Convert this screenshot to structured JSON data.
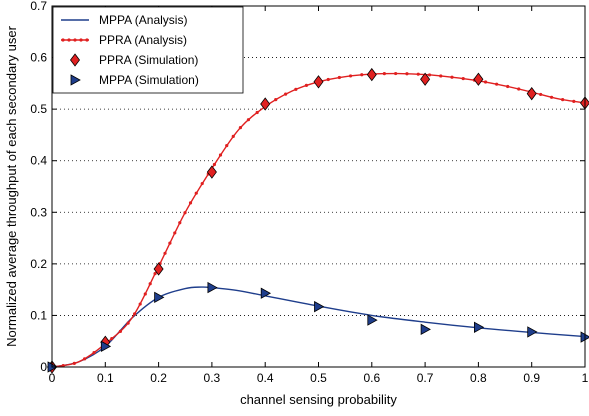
{
  "chart_data": {
    "type": "line",
    "xlabel": "channel sensing probability",
    "ylabel": "Normalized average throughput of each secondary user",
    "xlim": [
      0,
      1
    ],
    "ylim": [
      0,
      0.7
    ],
    "xticks": [
      0,
      0.1,
      0.2,
      0.3,
      0.4,
      0.5,
      0.6,
      0.7,
      0.8,
      0.9,
      1
    ],
    "yticks": [
      0,
      0.1,
      0.2,
      0.3,
      0.4,
      0.5,
      0.6,
      0.7
    ],
    "xtick_labels": [
      "0",
      "0.1",
      "0.2",
      "0.3",
      "0.4",
      "0.5",
      "0.6",
      "0.7",
      "0.8",
      "0.9",
      "1"
    ],
    "ytick_labels": [
      "0",
      "0.1",
      "0.2",
      "0.3",
      "0.4",
      "0.5",
      "0.6",
      "0.7"
    ],
    "grid": "horizontal dotted",
    "legend_position": "top-left",
    "series": [
      {
        "name": "MPPA (Analysis)",
        "style": "line",
        "color": "#1f3e8c",
        "x": [
          0,
          0.05,
          0.1,
          0.15,
          0.2,
          0.25,
          0.28,
          0.3,
          0.35,
          0.4,
          0.5,
          0.6,
          0.7,
          0.8,
          0.9,
          1.0
        ],
        "y": [
          0,
          0.01,
          0.04,
          0.095,
          0.135,
          0.152,
          0.155,
          0.154,
          0.148,
          0.138,
          0.118,
          0.1,
          0.087,
          0.076,
          0.067,
          0.059
        ]
      },
      {
        "name": "PPRA (Analysis)",
        "style": "line-dots",
        "color": "#e02020",
        "x": [
          0,
          0.05,
          0.1,
          0.15,
          0.2,
          0.25,
          0.3,
          0.35,
          0.4,
          0.45,
          0.5,
          0.55,
          0.6,
          0.65,
          0.7,
          0.75,
          0.8,
          0.85,
          0.9,
          0.95,
          1.0
        ],
        "y": [
          0,
          0.01,
          0.045,
          0.095,
          0.195,
          0.3,
          0.385,
          0.46,
          0.505,
          0.535,
          0.553,
          0.563,
          0.568,
          0.569,
          0.567,
          0.562,
          0.555,
          0.545,
          0.533,
          0.52,
          0.512
        ]
      },
      {
        "name": "PPRA (Simulation)",
        "style": "diamond-marker",
        "color": "#e02020",
        "x": [
          0,
          0.1,
          0.2,
          0.3,
          0.4,
          0.5,
          0.6,
          0.7,
          0.8,
          0.9,
          1.0
        ],
        "y": [
          0,
          0.048,
          0.19,
          0.378,
          0.51,
          0.553,
          0.567,
          0.558,
          0.558,
          0.53,
          0.512
        ]
      },
      {
        "name": "MPPA (Simulation)",
        "style": "triangle-right-marker",
        "color": "#1f3e8c",
        "x": [
          0,
          0.1,
          0.2,
          0.3,
          0.4,
          0.5,
          0.6,
          0.7,
          0.8,
          0.9,
          1.0
        ],
        "y": [
          0,
          0.04,
          0.135,
          0.154,
          0.143,
          0.117,
          0.091,
          0.073,
          0.077,
          0.068,
          0.058
        ]
      }
    ]
  }
}
